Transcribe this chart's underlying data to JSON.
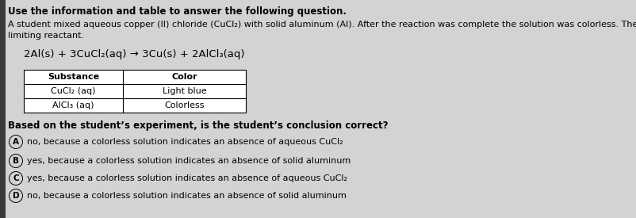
{
  "title_line": "Use the information and table to answer the following question.",
  "para_line1": "A student mixed aqueous copper (II) chloride (CuCl₂) with solid aluminum (Al). After the reaction was complete the solution was colorless. The student determined that aluminum is the",
  "para_line2": "limiting reactant.",
  "equation": "2Al(s) + 3CuCl₂(aq) → 3Cu(s) + 2AlCl₃(aq)",
  "table_headers": [
    "Substance",
    "Color"
  ],
  "table_rows": [
    [
      "CuCl₂ (aq)",
      "Light blue"
    ],
    [
      "AlCl₃ (aq)",
      "Colorless"
    ]
  ],
  "question_bold": "Based on the student’s experiment, is the student’s conclusion correct?",
  "options": [
    [
      "A",
      "no, because a colorless solution indicates an absence of aqueous CuCl₂"
    ],
    [
      "B",
      "yes, because a colorless solution indicates an absence of solid aluminum"
    ],
    [
      "C",
      "yes, because a colorless solution indicates an absence of aqueous CuCl₂"
    ],
    [
      "D",
      "no, because a colorless solution indicates an absence of solid aluminum"
    ]
  ],
  "bg_color": "#d3d3d3",
  "left_bar_color": "#3a3a3a",
  "title_fontsize": 8.5,
  "body_fontsize": 8.0,
  "equation_fontsize": 9.5,
  "table_fontsize": 8.0,
  "question_fontsize": 8.5,
  "option_fontsize": 8.0
}
